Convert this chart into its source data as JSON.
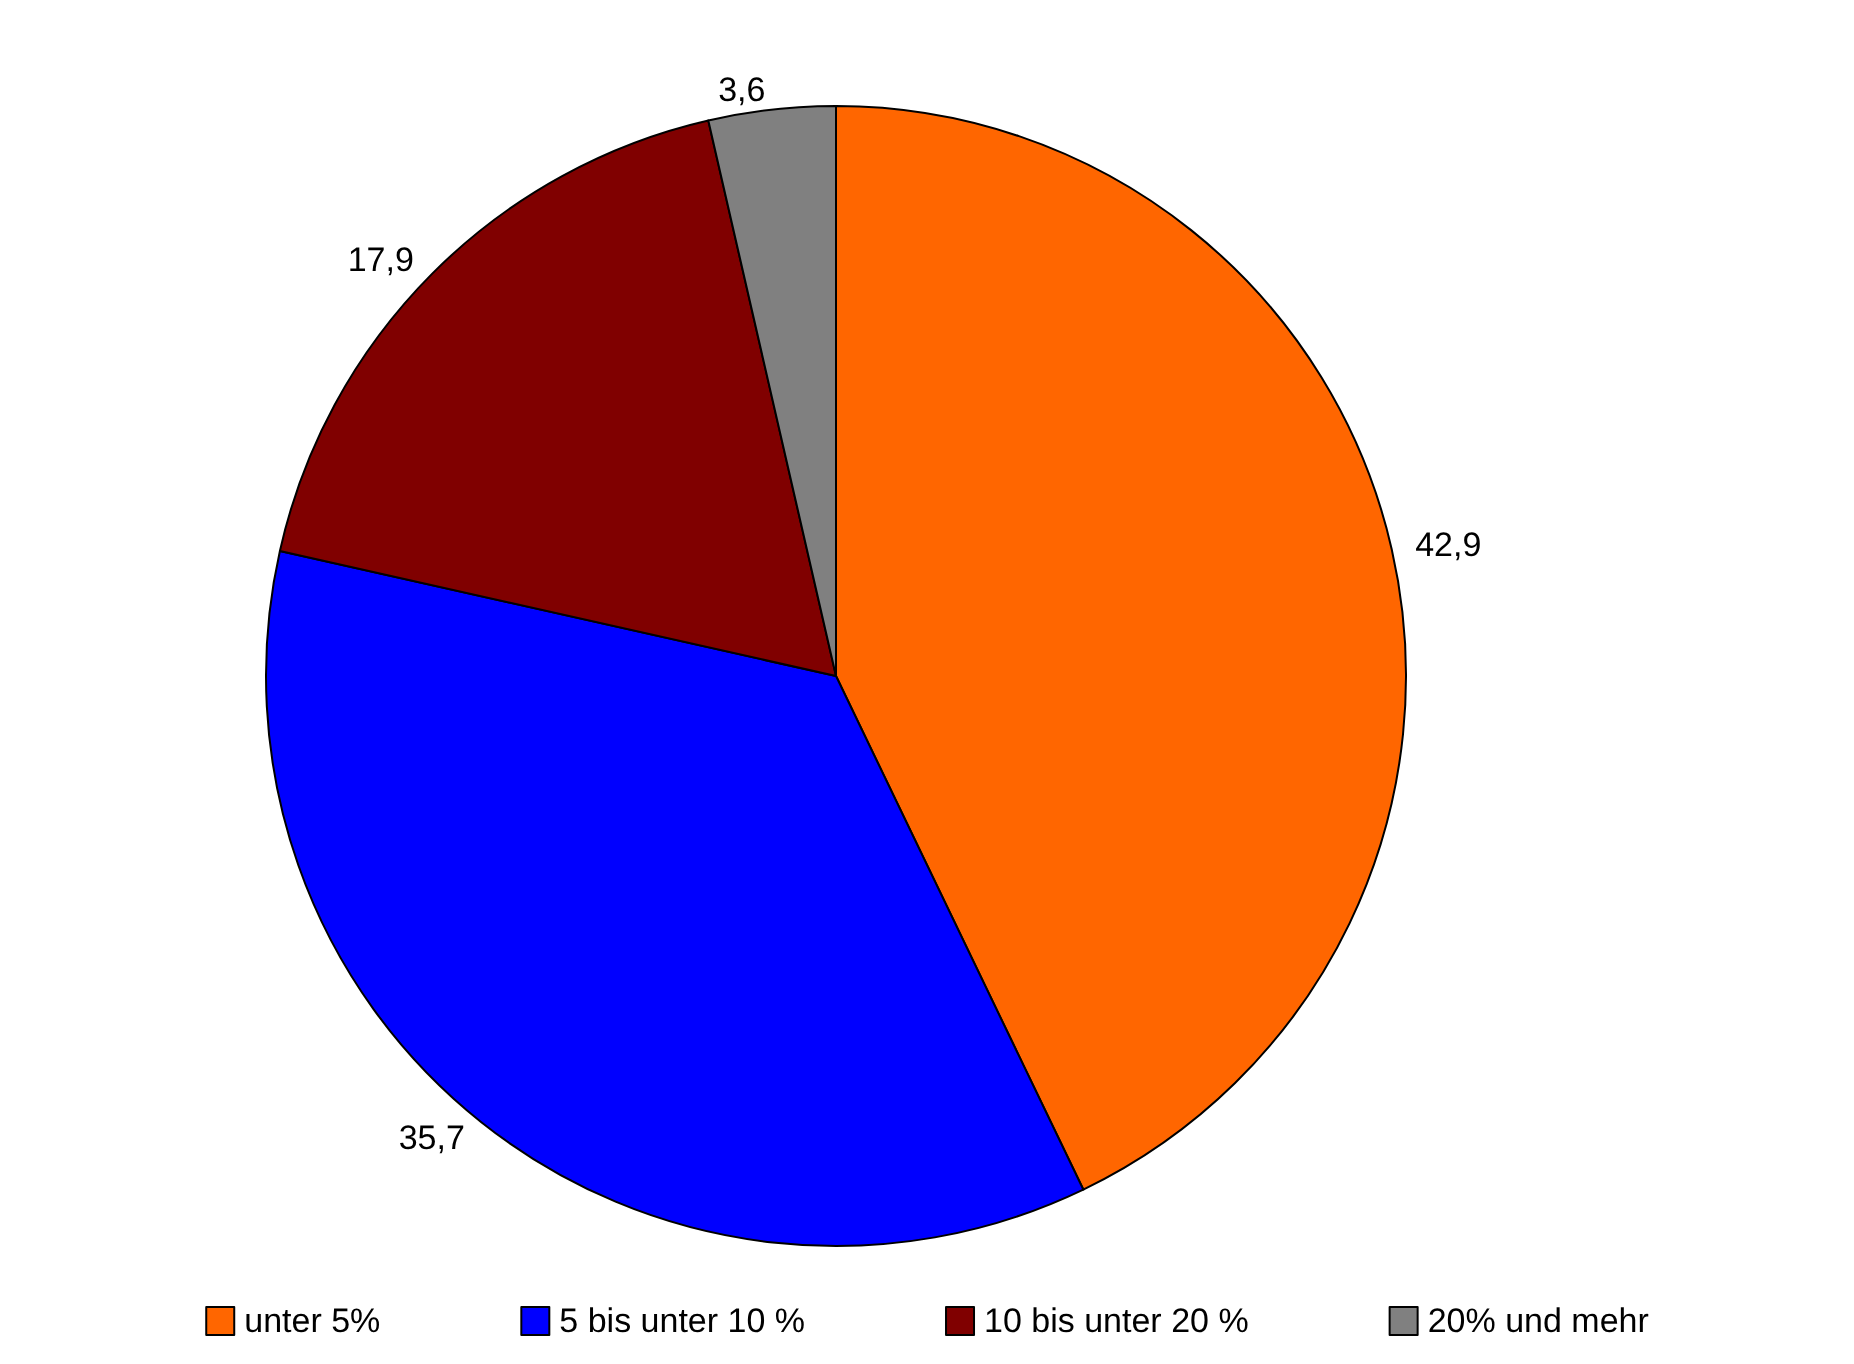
{
  "chart_data": {
    "type": "pie",
    "categories": [
      "unter 5%",
      "5 bis unter 10 %",
      "10 bis unter 20 %",
      "20% und mehr"
    ],
    "values": [
      42.9,
      35.7,
      17.9,
      3.6
    ],
    "colors": [
      "#ff6600",
      "#0000ff",
      "#800000",
      "#808080"
    ],
    "value_labels": [
      "42,9",
      "35,7",
      "17,9",
      "3,6"
    ],
    "legend": "bottom"
  }
}
